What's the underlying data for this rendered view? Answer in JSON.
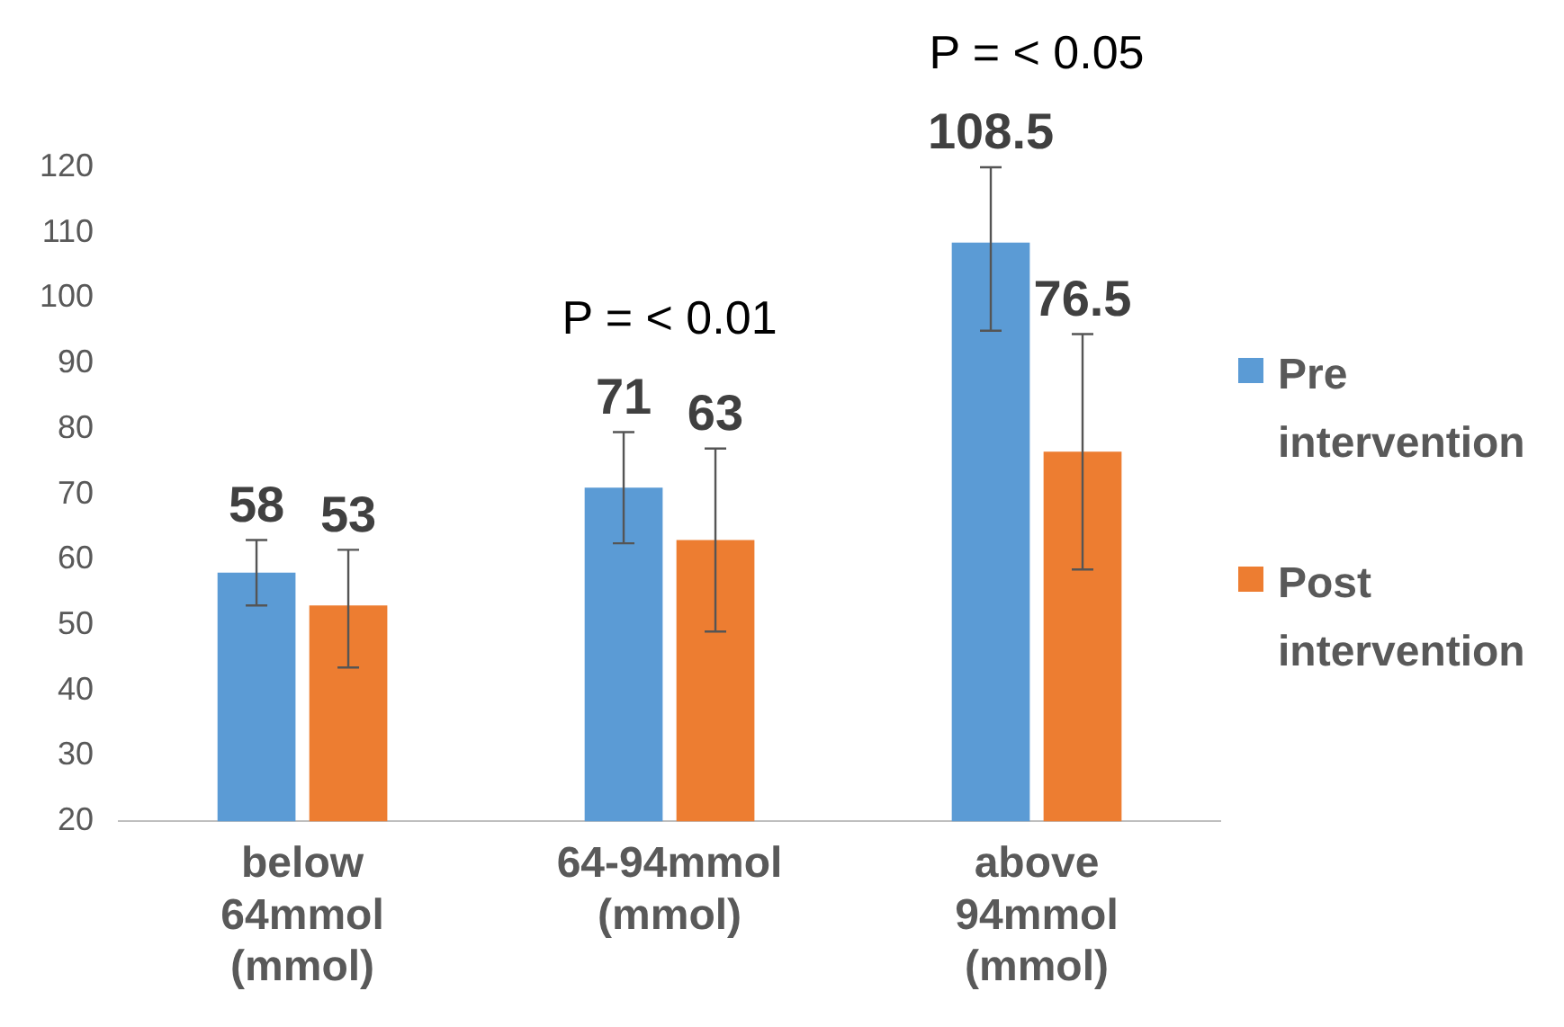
{
  "chart_data": {
    "type": "bar",
    "categories": [
      "below 64mmol (mmol)",
      "64-94mmol (mmol)",
      "above 94mmol (mmol)"
    ],
    "series": [
      {
        "name": "Pre intervention",
        "color": "#5b9bd5",
        "values": [
          58,
          71,
          108.5
        ],
        "errors": [
          [
            53,
            63
          ],
          [
            62.5,
            79.5
          ],
          [
            95,
            120
          ]
        ]
      },
      {
        "name": "Post intervention",
        "color": "#ed7d31",
        "values": [
          53,
          63,
          76.5
        ],
        "errors": [
          [
            43.5,
            61.5
          ],
          [
            49,
            77
          ],
          [
            58.5,
            94.5
          ]
        ]
      }
    ],
    "ylim": [
      20,
      120
    ],
    "yticks": [
      20,
      30,
      40,
      50,
      60,
      70,
      80,
      90,
      100,
      110,
      120
    ],
    "grid": false,
    "legend": "right",
    "data_labels": true,
    "annotations": [
      "P = < 0.01",
      "P = < 0.05"
    ]
  }
}
